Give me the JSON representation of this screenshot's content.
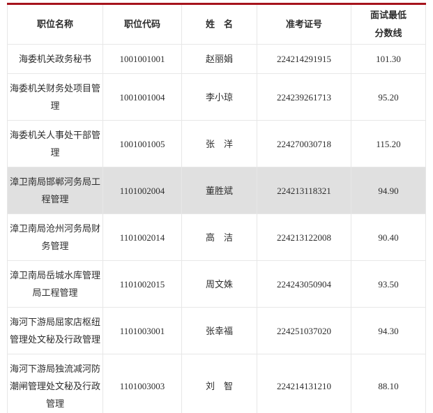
{
  "accent": {
    "top_line_color": "#a6131c",
    "highlight_row_color": "#e0e0e0"
  },
  "table": {
    "columns": [
      {
        "label": "职位名称"
      },
      {
        "label": "职位代码"
      },
      {
        "label": "姓　名"
      },
      {
        "label": "准考证号"
      },
      {
        "label": "面试最低分数线"
      }
    ],
    "rows": [
      {
        "position": "海委机关政务秘书",
        "code": "1001001001",
        "name": "赵丽娟",
        "ticket": "224214291915",
        "score": "101.30",
        "highlighted": false
      },
      {
        "position": "海委机关财务处项目管理",
        "code": "1001001004",
        "name": "李小琼",
        "ticket": "224239261713",
        "score": "95.20",
        "highlighted": false
      },
      {
        "position": "海委机关人事处干部管理",
        "code": "1001001005",
        "name": "张　洋",
        "ticket": "224270030718",
        "score": "115.20",
        "highlighted": false
      },
      {
        "position": "漳卫南局邯郸河务局工程管理",
        "code": "1101002004",
        "name": "董胜斌",
        "ticket": "224213118321",
        "score": "94.90",
        "highlighted": true
      },
      {
        "position": "漳卫南局沧州河务局财务管理",
        "code": "1101002014",
        "name": "高　洁",
        "ticket": "224213122008",
        "score": "90.40",
        "highlighted": false
      },
      {
        "position": "漳卫南局岳城水库管理局工程管理",
        "code": "1101002015",
        "name": "周文姝",
        "ticket": "224243050904",
        "score": "93.50",
        "highlighted": false
      },
      {
        "position": "海河下游局屈家店枢纽管理处文秘及行政管理",
        "code": "1101003001",
        "name": "张幸福",
        "ticket": "224251037020",
        "score": "94.30",
        "highlighted": false
      },
      {
        "position": "海河下游局独流减河防潮闸管理处文秘及行政管理",
        "code": "1101003003",
        "name": "刘　智",
        "ticket": "224214131210",
        "score": "88.10",
        "highlighted": false
      }
    ]
  }
}
